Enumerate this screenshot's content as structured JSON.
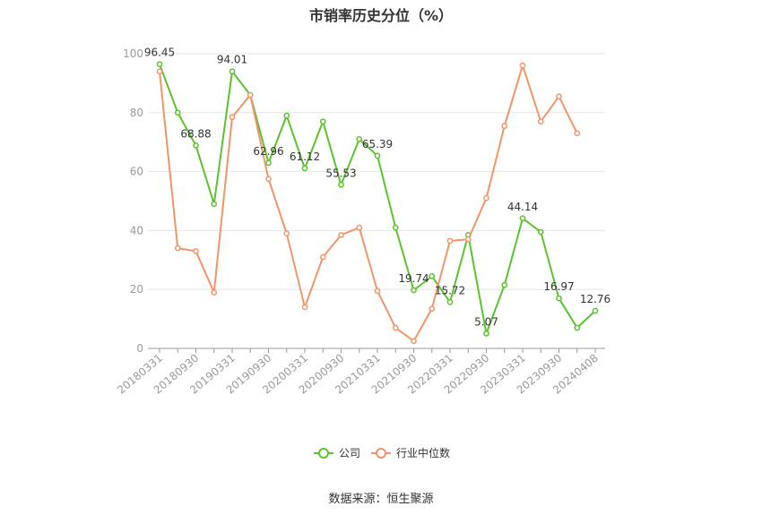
{
  "chart_data": {
    "type": "line",
    "title": "市销率历史分位（%）",
    "xlabel": "",
    "ylabel": "",
    "ylim": [
      0,
      100
    ],
    "yticks": [
      0,
      20,
      40,
      60,
      80,
      100
    ],
    "tick_labels": [
      "20180331",
      "20180930",
      "20190331",
      "20190930",
      "20200331",
      "20200930",
      "20210331",
      "20210930",
      "20220331",
      "20220930",
      "20230331",
      "20230930",
      "20240408"
    ],
    "categories": [
      "20180331",
      "20180630",
      "20180930",
      "20181231",
      "20190331",
      "20190630",
      "20190930",
      "20191231",
      "20200331",
      "20200630",
      "20200930",
      "20201231",
      "20210331",
      "20210630",
      "20210930",
      "20211231",
      "20220331",
      "20220630",
      "20220930",
      "20221231",
      "20230331",
      "20230630",
      "20230930",
      "20231231",
      "20240408"
    ],
    "series": [
      {
        "name": "公司",
        "color": "#5cc22e",
        "values": [
          96.45,
          80,
          68.88,
          49,
          94.01,
          86,
          62.96,
          79,
          61.12,
          77,
          55.53,
          71,
          65.39,
          41,
          19.74,
          24.5,
          15.72,
          38.5,
          5.07,
          21.5,
          44.14,
          39.5,
          16.97,
          7,
          12.76
        ],
        "labels": {
          "0": "96.45",
          "2": "68.88",
          "4": "94.01",
          "6": "62.96",
          "8": "61.12",
          "10": "55.53",
          "12": "65.39",
          "14": "19.74",
          "16": "15.72",
          "18": "5.07",
          "20": "44.14",
          "22": "16.97",
          "24": "12.76"
        }
      },
      {
        "name": "行业中位数",
        "color": "#f0956a",
        "values": [
          94,
          34,
          33,
          19,
          78.5,
          86,
          57.5,
          39,
          14,
          31,
          38.5,
          41,
          19.5,
          7,
          2.5,
          13.5,
          36.5,
          37,
          51,
          75.5,
          96,
          77,
          85.5,
          73,
          null
        ]
      }
    ],
    "legend": {
      "position": "bottom",
      "entries": [
        "公司",
        "行业中位数"
      ]
    },
    "grid": true
  },
  "source_note": "数据来源：恒生聚源"
}
